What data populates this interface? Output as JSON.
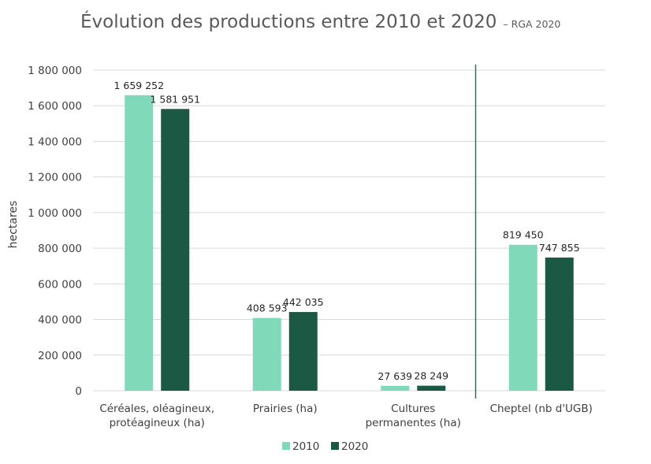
{
  "chart_data": {
    "type": "bar",
    "title": "Évolution des productions entre 2010 et 2020",
    "subtitle": "– RGA 2020",
    "ylabel": "hectares",
    "xlabel": "",
    "ylim": [
      0,
      1800000
    ],
    "yticks": [
      0,
      200000,
      400000,
      600000,
      800000,
      1000000,
      1200000,
      1400000,
      1600000,
      1800000
    ],
    "ytick_labels": [
      "0",
      "200 000",
      "400 000",
      "600 000",
      "800 000",
      "1 000 000",
      "1 200 000",
      "1 400 000",
      "1 600 000",
      "1 800 000"
    ],
    "grid": true,
    "legend_position": "bottom",
    "separator_after_category": 2,
    "categories": [
      [
        "Céréales, oléagineux,",
        "protéagineux (ha)"
      ],
      [
        "Prairies (ha)"
      ],
      [
        "Cultures",
        "permanentes (ha)"
      ],
      [
        "Cheptel (nb d'UGB)"
      ]
    ],
    "series": [
      {
        "name": "2010",
        "color": "#80d9b8",
        "values": [
          1659252,
          408593,
          27639,
          819450
        ],
        "labels": [
          "1 659 252",
          "408 593",
          "27 639",
          "819 450"
        ]
      },
      {
        "name": "2020",
        "color": "#1c5945",
        "values": [
          1581951,
          442035,
          28249,
          747855
        ],
        "labels": [
          "1 581 951",
          "442 035",
          "28 249",
          "747 855"
        ]
      }
    ],
    "colors": {
      "grid": "#d9d9d9",
      "separator": "#1e7a5a",
      "axis": "#d9d9d9"
    }
  }
}
